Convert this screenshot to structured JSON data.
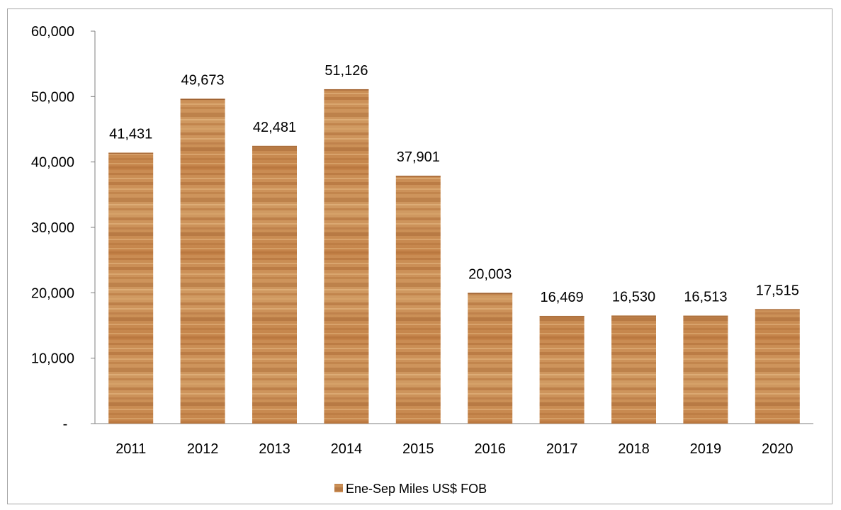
{
  "chart_data": {
    "type": "bar",
    "categories": [
      "2011",
      "2012",
      "2013",
      "2014",
      "2015",
      "2016",
      "2017",
      "2018",
      "2019",
      "2020"
    ],
    "series": [
      {
        "name": "Ene-Sep Miles US$ FOB",
        "values": [
          41431,
          49673,
          42481,
          51126,
          37901,
          20003,
          16469,
          16530,
          16513,
          17515
        ],
        "value_labels": [
          "41,431",
          "49,673",
          "42,481",
          "51,126",
          "37,901",
          "20,003",
          "16,469",
          "16,530",
          "16,513",
          "17,515"
        ]
      }
    ],
    "y_ticks": [
      {
        "value": 0,
        "label": "-"
      },
      {
        "value": 10000,
        "label": "10,000"
      },
      {
        "value": 20000,
        "label": "20,000"
      },
      {
        "value": 30000,
        "label": "30,000"
      },
      {
        "value": 40000,
        "label": "40,000"
      },
      {
        "value": 50000,
        "label": "50,000"
      },
      {
        "value": 60000,
        "label": "60,000"
      }
    ],
    "ylim": [
      0,
      60000
    ],
    "grid": false,
    "legend_position": "bottom",
    "bar_color": "#c98a4f",
    "bar_texture": "wood-grain"
  }
}
